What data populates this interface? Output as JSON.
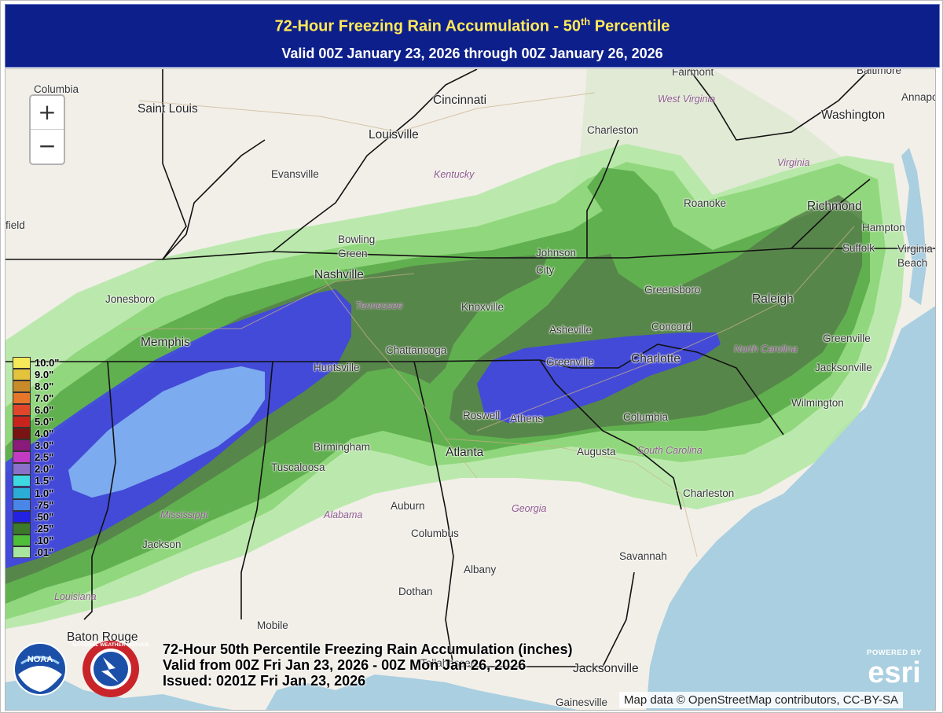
{
  "header": {
    "title": "72-Hour Freezing Rain Accumulation - 50",
    "title_sup": "th",
    "title_tail": " Percentile",
    "valid": "Valid 00Z January 23, 2026 through 00Z January 26, 2026"
  },
  "map": {
    "zoom_in": "+",
    "zoom_out": "−",
    "cities": [
      {
        "name": "Columbia"
      },
      {
        "name": "Saint Louis"
      },
      {
        "name": "Cincinnati"
      },
      {
        "name": "Fairmont"
      },
      {
        "name": "Baltimore"
      },
      {
        "name": "Annapo"
      },
      {
        "name": "Washington"
      },
      {
        "name": "Charleston"
      },
      {
        "name": "Louisville"
      },
      {
        "name": "Evansville"
      },
      {
        "name": "Roanoke"
      },
      {
        "name": "Richmond"
      },
      {
        "name": "field"
      },
      {
        "name": "Bowling Green"
      },
      {
        "name": "Johnson City"
      },
      {
        "name": "Hampton"
      },
      {
        "name": "Suffolk"
      },
      {
        "name": "Virginia Beach"
      },
      {
        "name": "Nashville"
      },
      {
        "name": "Jonesboro"
      },
      {
        "name": "Greensboro"
      },
      {
        "name": "Raleigh"
      },
      {
        "name": "Knoxville"
      },
      {
        "name": "Asheville"
      },
      {
        "name": "Concord"
      },
      {
        "name": "Memphis"
      },
      {
        "name": "Chattanooga"
      },
      {
        "name": "Greenville"
      },
      {
        "name": "Charlotte"
      },
      {
        "name": "Huntsville"
      },
      {
        "name": "Greenville"
      },
      {
        "name": "Jacksonville"
      },
      {
        "name": "Roswell"
      },
      {
        "name": "Athens"
      },
      {
        "name": "Wilmington"
      },
      {
        "name": "Columbia"
      },
      {
        "name": "Birmingham"
      },
      {
        "name": "Atlanta"
      },
      {
        "name": "Augusta"
      },
      {
        "name": "Tuscaloosa"
      },
      {
        "name": "Charleston"
      },
      {
        "name": "Auburn"
      },
      {
        "name": "Columbus"
      },
      {
        "name": "Jackson"
      },
      {
        "name": "Albany"
      },
      {
        "name": "Savannah"
      },
      {
        "name": "Dothan"
      },
      {
        "name": "Mobile"
      },
      {
        "name": "Baton Rouge"
      },
      {
        "name": "Tallahassee"
      },
      {
        "name": "Jacksonville"
      },
      {
        "name": "Gainesville"
      }
    ],
    "states": [
      {
        "name": "West Virginia"
      },
      {
        "name": "Virginia"
      },
      {
        "name": "Kentucky"
      },
      {
        "name": "Tennessee"
      },
      {
        "name": "North Carolina"
      },
      {
        "name": "South Carolina"
      },
      {
        "name": "Georgia"
      },
      {
        "name": "Alabama"
      },
      {
        "name": "Mississippi"
      },
      {
        "name": "Louisiana"
      }
    ],
    "attribution": "Map data © OpenStreetMap contributors, CC-BY-SA",
    "esri_powered": "POWERED BY",
    "esri_wordmark": "esri"
  },
  "legend": [
    {
      "label": "10.0\"",
      "color": "#f5e95a"
    },
    {
      "label": "9.0\"",
      "color": "#e3c23c"
    },
    {
      "label": "8.0\"",
      "color": "#c98a2a"
    },
    {
      "label": "7.0\"",
      "color": "#e5762a"
    },
    {
      "label": "6.0\"",
      "color": "#e0472a"
    },
    {
      "label": "5.0\"",
      "color": "#c8241e"
    },
    {
      "label": "4.0\"",
      "color": "#7a1414"
    },
    {
      "label": "3.0\"",
      "color": "#8a1b7a"
    },
    {
      "label": "2.5\"",
      "color": "#c23bc2"
    },
    {
      "label": "2.0\"",
      "color": "#8a70c8"
    },
    {
      "label": "1.5\"",
      "color": "#3ed8e0"
    },
    {
      "label": "1.0\"",
      "color": "#2aaed8"
    },
    {
      "label": ".75\"",
      "color": "#4a86e8"
    },
    {
      "label": ".50\"",
      "color": "#2222e0"
    },
    {
      "label": ".25\"",
      "color": "#3a7a2a"
    },
    {
      "label": ".10\"",
      "color": "#4fbf3a"
    },
    {
      "label": ".01\"",
      "color": "#a8e6a0"
    }
  ],
  "product": {
    "line1": "72-Hour 50th Percentile Freezing Rain Accumulation (inches)",
    "line2": "Valid from 00Z Fri Jan 23, 2026 - 00Z Mon Jan 26, 2026",
    "line3": "Issued: 0201Z Fri Jan 23, 2026"
  },
  "logos": {
    "noaa": "NOAA",
    "nws": "NATIONAL WEATHER SERVICE"
  }
}
